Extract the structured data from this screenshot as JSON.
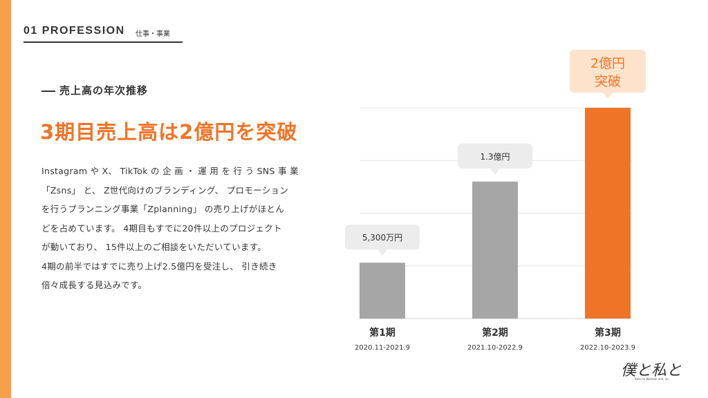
{
  "section": {
    "number_title": "01 PROFESSION",
    "ja_label": "仕事・事業"
  },
  "subheading": "売上高の年次推移",
  "headline": "3期目売上高は2億円を突破",
  "body_lines": [
    "Instagram や X、 TikTok の 企 画 ・ 運 用 を 行 う SNS 事 業",
    "「Zsns」 と、 Z世代向けのブランディング、 プロモーション",
    "を行うプランニング事業「Zplanning」 の売り上げがほとん",
    "どを占めています。 4期目もすでに20件以上のプロジェクト",
    "が動いており、 15件以上のご相談をいただいています。",
    "4期の前半ではすでに売り上げ2.5億円を受注し、 引き続き",
    "倍々成長する見込みです。"
  ],
  "colors": {
    "accent": "#f07427",
    "bar_gray": "#a6a6a6",
    "callout_gray_bg": "#ececec",
    "callout_orange_bg": "#fde3cc",
    "left_bar": "#f7a04b"
  },
  "logo": {
    "text": "僕と私と",
    "tagline": "Boku to Watashi and, inc."
  },
  "chart_data": {
    "type": "bar",
    "categories": [
      "第1期",
      "第2期",
      "第3期"
    ],
    "periods": [
      "2020.11-2021.9",
      "2021.10-2022.9",
      "2022.10-2023.9"
    ],
    "values": [
      53,
      130,
      200
    ],
    "unit": "百万円",
    "value_labels": [
      "5,300万円",
      "1.3億円",
      "2億円突破"
    ],
    "highlight_index": 2,
    "ylim": [
      0,
      200
    ],
    "grid": true,
    "legend": "none"
  }
}
